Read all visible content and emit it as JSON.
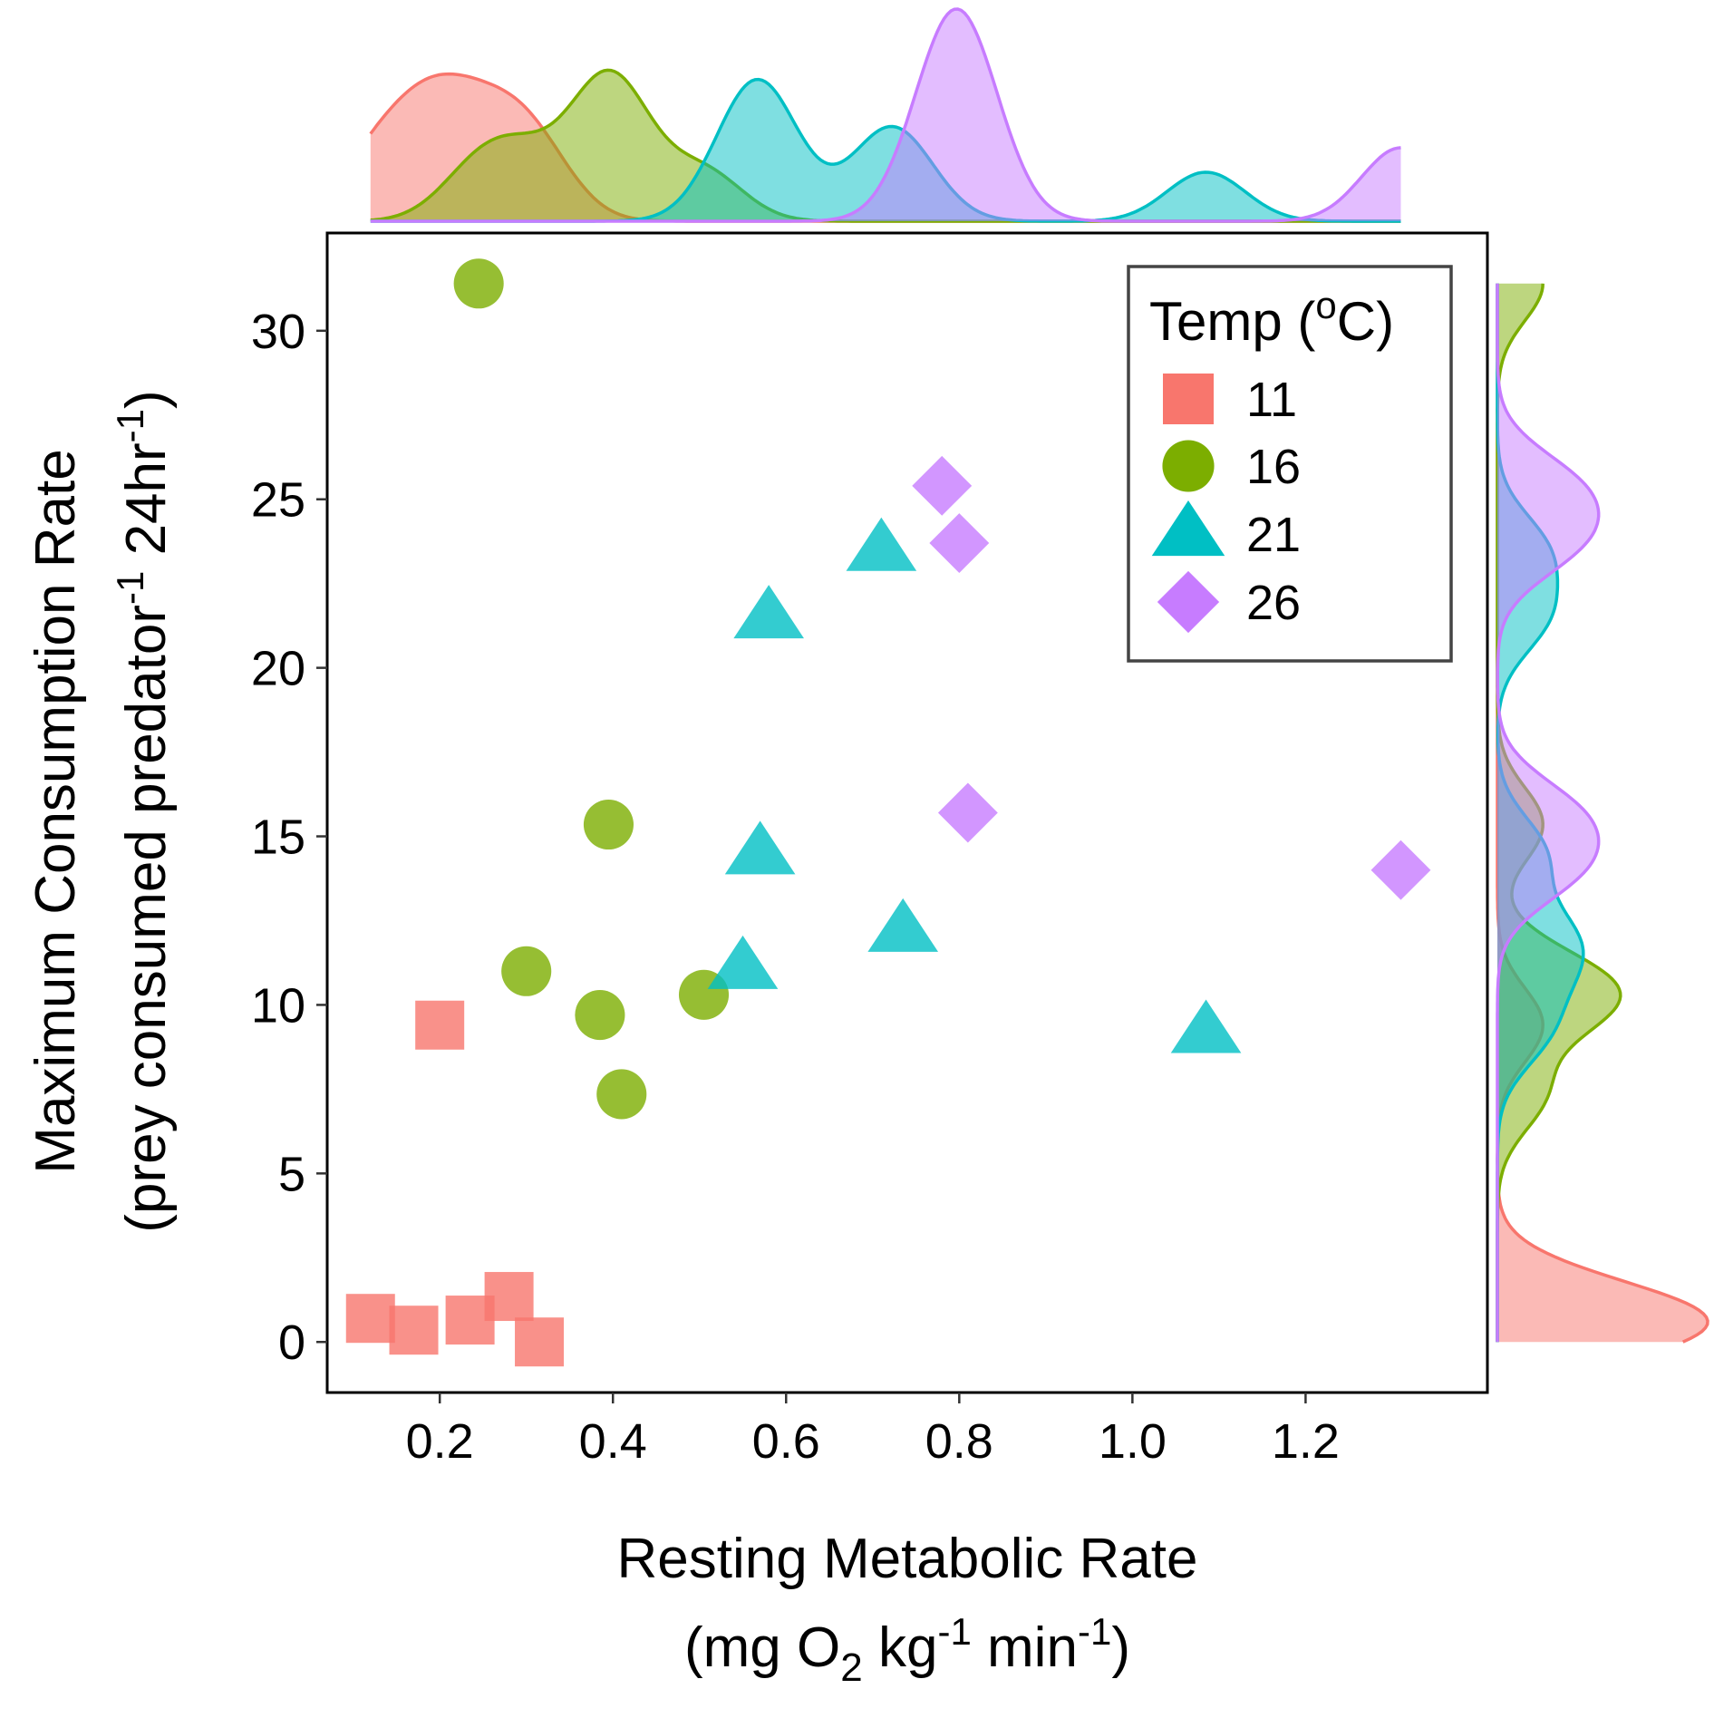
{
  "chart_data": {
    "type": "scatter",
    "xlabel_line1": "Resting Metabolic Rate",
    "xlabel_line2": {
      "pre": "(mg O",
      "sub": "2",
      "mid1": " kg",
      "sup1": "-1",
      "mid2": " min",
      "sup2": "-1",
      "post": ")"
    },
    "ylabel_line1": "Maximum Consumption Rate",
    "ylabel_line2": {
      "pre": "(prey consumed predator",
      "sup1": "-1",
      "mid": " 24hr",
      "sup2": "-1",
      "post": ")"
    },
    "xlim": [
      0.07,
      1.41
    ],
    "ylim": [
      -1.5,
      32.9
    ],
    "x_ticks": [
      0.2,
      0.4,
      0.6,
      0.8,
      1.0,
      1.2
    ],
    "x_tick_labels": [
      "0.2",
      "0.4",
      "0.6",
      "0.8",
      "1.0",
      "1.2"
    ],
    "y_ticks": [
      0,
      5,
      10,
      15,
      20,
      25,
      30
    ],
    "y_tick_labels": [
      "0",
      "5",
      "10",
      "15",
      "20",
      "25",
      "30"
    ],
    "grid": false,
    "legend": {
      "title_pre": "Temp (",
      "title_sup": "o",
      "title_post": "C)",
      "placement": "top-right"
    },
    "series": [
      {
        "name": "11",
        "color": "#F8766D",
        "shape": "square",
        "x": [
          0.12,
          0.17,
          0.2,
          0.235,
          0.28,
          0.315
        ],
        "y": [
          0.7,
          0.35,
          9.4,
          0.65,
          1.35,
          0.0
        ]
      },
      {
        "name": "16",
        "color": "#7CAE00",
        "shape": "circle",
        "x": [
          0.245,
          0.395,
          0.3,
          0.385,
          0.41,
          0.505
        ],
        "y": [
          31.4,
          15.35,
          11.0,
          9.7,
          7.35,
          10.3
        ]
      },
      {
        "name": "21",
        "color": "#00BFC4",
        "shape": "triangle",
        "x": [
          0.58,
          0.71,
          0.57,
          0.735,
          0.55,
          1.085
        ],
        "y": [
          21.5,
          23.5,
          14.5,
          12.2,
          11.1,
          9.2
        ]
      },
      {
        "name": "26",
        "color": "#C77CFF",
        "shape": "diamond",
        "x": [
          0.78,
          0.8,
          0.81,
          1.31
        ],
        "y": [
          25.4,
          23.7,
          15.7,
          14.0
        ]
      }
    ],
    "marginal_density": {
      "x_axis": "top",
      "y_axis": "right"
    }
  }
}
